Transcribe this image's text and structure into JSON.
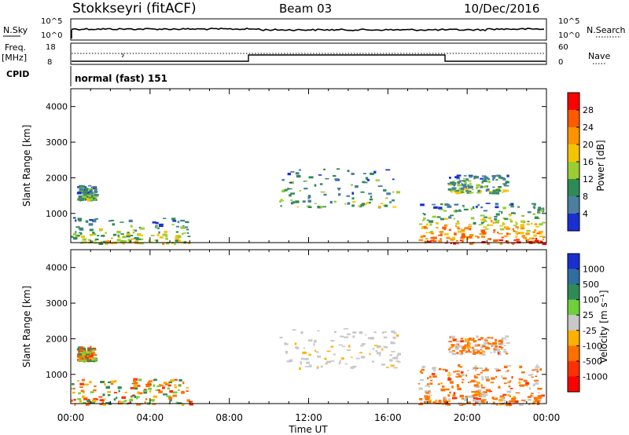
{
  "header": {
    "title": "Stokkseyri (fitACF)",
    "beam": "Beam 03",
    "date": "10/Dec/2016"
  },
  "noise_panel": {
    "left_label": "N.Sky",
    "left_ticks": [
      "10^5",
      "10^0"
    ],
    "right_label": "N.Search",
    "right_ticks": [
      "10^5",
      "10^0"
    ]
  },
  "freq_panel": {
    "left_label_1": "Freq.",
    "left_label_2": "[MHz]",
    "left_ticks": [
      "18",
      "8"
    ],
    "right_label": "Nave",
    "right_ticks": [
      "60",
      "0"
    ]
  },
  "cpid": {
    "label": "CPID",
    "value": "normal (fast) 151"
  },
  "x_axis": {
    "label": "Time UT",
    "ticks": [
      "00:00",
      "04:00",
      "08:00",
      "12:00",
      "16:00",
      "20:00",
      "00:00"
    ]
  },
  "chart_data": [
    {
      "type": "heatmap",
      "name": "power",
      "ylabel": "Slant Range [km]",
      "xlabel": "",
      "y_ticks": [
        "1000",
        "2000",
        "3000",
        "4000"
      ],
      "xlim_hours": [
        0,
        24
      ],
      "ylim_km": [
        180,
        4500
      ],
      "colorbar_label": "Power [dB]",
      "colorbar_ticks": [
        "28",
        "24",
        "20",
        "16",
        "12",
        "8",
        "4"
      ],
      "colorbar_colors": [
        "#ff0000",
        "#ff5a00",
        "#ff9400",
        "#f4c400",
        "#9acd32",
        "#2e8b57",
        "#4a7fa0",
        "#1a2fd2"
      ],
      "scatter_regions": [
        {
          "t0": 0.0,
          "t1": 6.0,
          "r0": 180,
          "r1": 900,
          "intensity": 0.45
        },
        {
          "t0": 0.3,
          "t1": 1.2,
          "r0": 1400,
          "r1": 1800,
          "intensity": 0.3
        },
        {
          "t0": 10.5,
          "t1": 16.5,
          "r0": 1200,
          "r1": 2300,
          "intensity": 0.25
        },
        {
          "t0": 17.5,
          "t1": 23.8,
          "r0": 180,
          "r1": 1300,
          "intensity": 0.9
        },
        {
          "t0": 19.0,
          "t1": 22.0,
          "r0": 1600,
          "r1": 2100,
          "intensity": 0.35
        }
      ]
    },
    {
      "type": "heatmap",
      "name": "velocity",
      "ylabel": "Slant Range [km]",
      "xlabel": "Time UT",
      "y_ticks": [
        "1000",
        "2000",
        "3000",
        "4000"
      ],
      "xlim_hours": [
        0,
        24
      ],
      "ylim_km": [
        180,
        4500
      ],
      "colorbar_label": "Velocity [m s⁻¹]",
      "colorbar_ticks": [
        "1000",
        "500",
        "100",
        "25",
        "-25",
        "-100",
        "-500",
        "-1000"
      ],
      "colorbar_colors": [
        "#1a2fd2",
        "#2e6fa0",
        "#2e8b57",
        "#6fd03a",
        "#c8c8c8",
        "#ffb000",
        "#ff7000",
        "#ff3000",
        "#ff0000"
      ],
      "scatter_regions": [
        {
          "t0": 0.0,
          "t1": 6.0,
          "r0": 180,
          "r1": 900,
          "intensity": 0.45
        },
        {
          "t0": 0.3,
          "t1": 1.2,
          "r0": 1400,
          "r1": 1800,
          "intensity": 0.3
        },
        {
          "t0": 10.5,
          "t1": 16.5,
          "r0": 1200,
          "r1": 2300,
          "intensity": 0.25
        },
        {
          "t0": 17.5,
          "t1": 23.8,
          "r0": 180,
          "r1": 1300,
          "intensity": 0.9
        },
        {
          "t0": 19.0,
          "t1": 22.0,
          "r0": 1600,
          "r1": 2100,
          "intensity": 0.35
        }
      ]
    }
  ]
}
